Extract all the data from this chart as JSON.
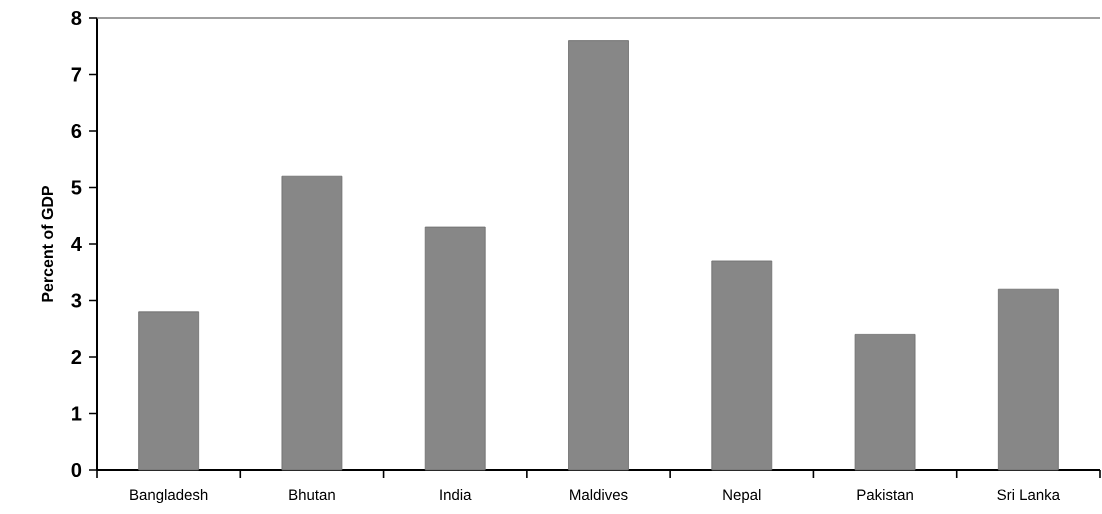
{
  "chart_data": {
    "type": "bar",
    "ylabel": "Percent of GDP",
    "categories": [
      "Bangladesh",
      "Bhutan",
      "India",
      "Maldives",
      "Nepal",
      "Pakistan",
      "Sri Lanka"
    ],
    "values": [
      2.8,
      5.2,
      4.3,
      7.6,
      3.7,
      2.4,
      3.2
    ],
    "color": "#878787",
    "ylim": [
      0,
      8
    ],
    "yticks": [
      0,
      1,
      2,
      3,
      4,
      5,
      6,
      7,
      8
    ]
  }
}
